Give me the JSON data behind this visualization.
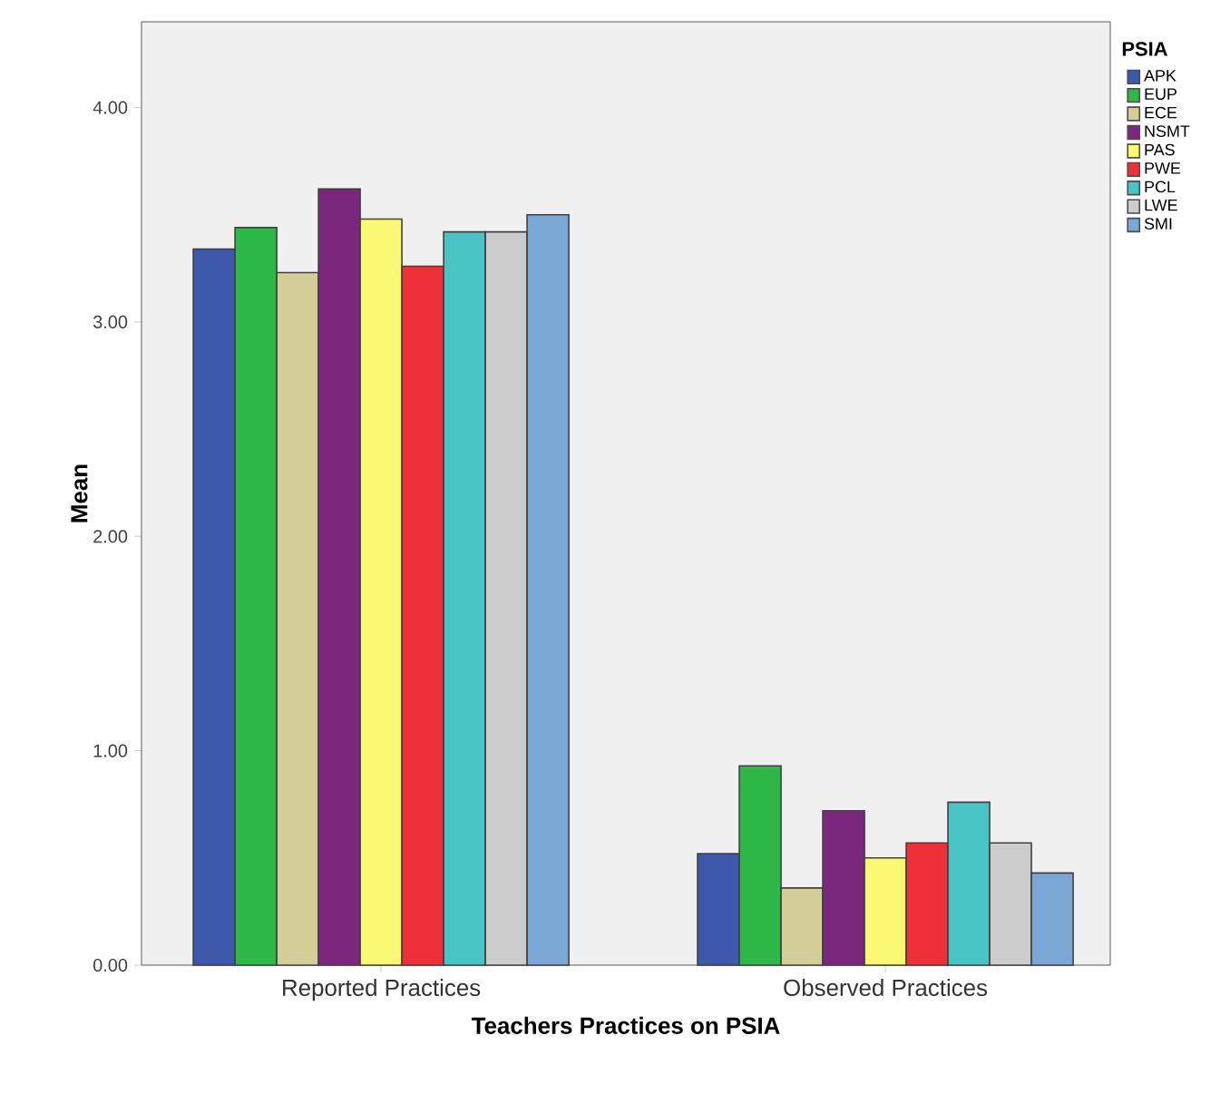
{
  "chart_data": {
    "type": "bar",
    "xlabel": "Teachers Practices on PSIA",
    "ylabel": "Mean",
    "legend_title": "PSIA",
    "legend": "right",
    "categories": [
      "Reported Practices",
      "Observed Practices"
    ],
    "ylim": [
      0,
      4.4
    ],
    "yticks": [
      {
        "value": 0,
        "label": "0.00"
      },
      {
        "value": 1,
        "label": "1.00"
      },
      {
        "value": 2,
        "label": "2.00"
      },
      {
        "value": 3,
        "label": "3.00"
      },
      {
        "value": 4,
        "label": "4.00"
      }
    ],
    "series": [
      {
        "name": "APK",
        "color": "#3e58ac",
        "values": [
          3.34,
          0.52
        ]
      },
      {
        "name": "EUP",
        "color": "#2eb848",
        "values": [
          3.44,
          0.93
        ]
      },
      {
        "name": "ECE",
        "color": "#d3ce97",
        "values": [
          3.23,
          0.36
        ]
      },
      {
        "name": "NSMT",
        "color": "#7b277d",
        "values": [
          3.62,
          0.72
        ]
      },
      {
        "name": "PAS",
        "color": "#fbf873",
        "values": [
          3.48,
          0.5
        ]
      },
      {
        "name": "PWE",
        "color": "#ef3038",
        "values": [
          3.26,
          0.57
        ]
      },
      {
        "name": "PCL",
        "color": "#48c4c4",
        "values": [
          3.42,
          0.76
        ]
      },
      {
        "name": "LWE",
        "color": "#cccccc",
        "values": [
          3.42,
          0.57
        ]
      },
      {
        "name": "SMI",
        "color": "#7ba7d5",
        "values": [
          3.5,
          0.43
        ]
      }
    ]
  }
}
